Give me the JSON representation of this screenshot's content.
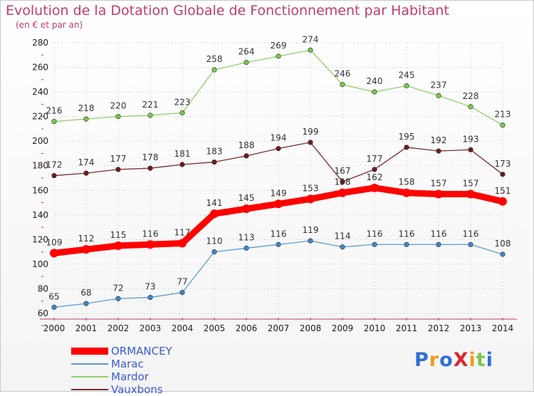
{
  "header": {
    "title": "Evolution de la Dotation Globale de Fonctionnement par Habitant",
    "subtitle": "(en € et par an)"
  },
  "logo": {
    "text": "ProXiti"
  },
  "chart_data": {
    "type": "line",
    "title": "Evolution de la Dotation Globale de Fonctionnement par Habitant",
    "subtitle": "(en € et par an)",
    "x": [
      2000,
      2001,
      2002,
      2003,
      2004,
      2005,
      2006,
      2007,
      2008,
      2009,
      2010,
      2011,
      2012,
      2013,
      2014
    ],
    "ylim": [
      60,
      280
    ],
    "yticks": [
      60,
      80,
      100,
      120,
      140,
      160,
      180,
      200,
      220,
      240,
      260,
      280
    ],
    "grid": true,
    "legend_position": "bottom-left",
    "series": [
      {
        "name": "Mardor",
        "color": "#8fd16a",
        "marker": "#7cc54e",
        "values": [
          216,
          218,
          220,
          221,
          223,
          258,
          264,
          269,
          274,
          246,
          240,
          245,
          237,
          228,
          213
        ]
      },
      {
        "name": "Vauxbons",
        "color": "#7a2e30",
        "marker": "#6b1e20",
        "values": [
          172,
          174,
          177,
          178,
          181,
          183,
          188,
          194,
          199,
          167,
          177,
          195,
          192,
          193,
          173
        ]
      },
      {
        "name": "Marac",
        "color": "#5b9bd5",
        "marker": "#3f87c9",
        "values": [
          65,
          68,
          72,
          73,
          77,
          110,
          113,
          116,
          119,
          114,
          116,
          116,
          116,
          116,
          108
        ]
      },
      {
        "name": "ORMANCEY",
        "color": "#ff0000",
        "marker": "#ff0000",
        "values": [
          109,
          112,
          115,
          116,
          117,
          141,
          145,
          149,
          153,
          158,
          162,
          158,
          157,
          157,
          151
        ]
      }
    ],
    "legend_order": [
      "ORMANCEY",
      "Marac",
      "Mardor",
      "Vauxbons"
    ]
  }
}
